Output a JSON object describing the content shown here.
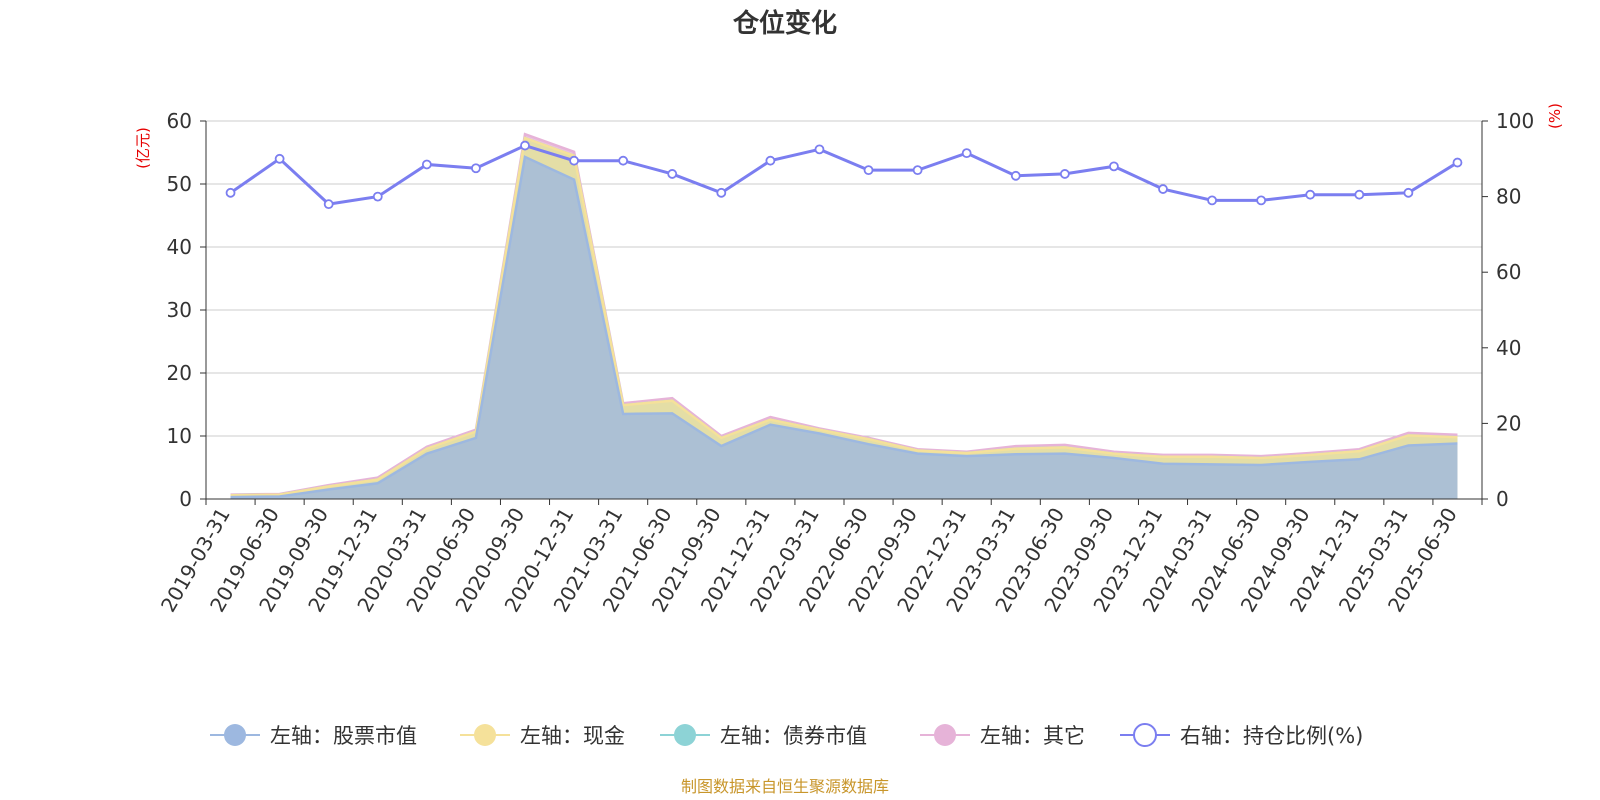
{
  "chart_data": {
    "type": "area",
    "title": "仓位变化",
    "left_axis_unit": "(亿元)",
    "right_axis_unit": "(%)",
    "left_axis": {
      "ylim": [
        0,
        60
      ],
      "ticks": [
        0,
        10,
        20,
        30,
        40,
        50,
        60
      ]
    },
    "right_axis": {
      "ylim": [
        0,
        100
      ],
      "ticks": [
        0,
        20,
        40,
        60,
        80,
        100
      ]
    },
    "grid": true,
    "legend_position": "bottom",
    "categories": [
      "2019-03-31",
      "2019-06-30",
      "2019-09-30",
      "2019-12-31",
      "2020-03-31",
      "2020-06-30",
      "2020-09-30",
      "2020-12-31",
      "2021-03-31",
      "2021-06-30",
      "2021-09-30",
      "2021-12-31",
      "2022-03-31",
      "2022-06-30",
      "2022-09-30",
      "2022-12-31",
      "2023-03-31",
      "2023-06-30",
      "2023-09-30",
      "2023-12-31",
      "2024-03-31",
      "2024-06-30",
      "2024-09-30",
      "2024-12-31",
      "2025-03-31",
      "2025-06-30"
    ],
    "series": [
      {
        "name": "左轴：股票市值",
        "axis": "left",
        "type": "area",
        "color": "#9db8e0",
        "values": [
          0.3,
          0.4,
          1.5,
          2.5,
          7.2,
          9.7,
          54.3,
          50.7,
          13.5,
          13.6,
          8.4,
          11.8,
          10.4,
          8.7,
          7.2,
          6.8,
          7.1,
          7.2,
          6.5,
          5.6,
          5.5,
          5.4,
          5.9,
          6.3,
          8.5,
          8.8
        ]
      },
      {
        "name": "左轴：现金",
        "axis": "left",
        "type": "area",
        "color": "#f5e19a",
        "values": [
          0.3,
          0.3,
          0.5,
          0.6,
          0.8,
          1.0,
          3.0,
          3.8,
          1.4,
          2.0,
          1.3,
          0.8,
          0.6,
          0.8,
          0.5,
          0.5,
          0.9,
          1.0,
          0.7,
          1.1,
          1.2,
          1.1,
          1.1,
          1.3,
          1.6,
          1.0
        ]
      },
      {
        "name": "左轴：债券市值",
        "axis": "left",
        "type": "area",
        "color": "#8dd3d6",
        "values": [
          0,
          0,
          0,
          0,
          0,
          0,
          0,
          0,
          0,
          0,
          0,
          0,
          0,
          0,
          0,
          0,
          0,
          0,
          0,
          0,
          0,
          0,
          0,
          0,
          0,
          0
        ]
      },
      {
        "name": "左轴：其它",
        "axis": "left",
        "type": "area",
        "color": "#e6b3d8",
        "values": [
          0.1,
          0.1,
          0.2,
          0.3,
          0.3,
          0.3,
          0.6,
          0.6,
          0.3,
          0.4,
          0.3,
          0.4,
          0.2,
          0.2,
          0.2,
          0.2,
          0.4,
          0.4,
          0.3,
          0.3,
          0.3,
          0.3,
          0.3,
          0.3,
          0.4,
          0.4
        ]
      },
      {
        "name": "右轴：持仓比例(%)",
        "axis": "right",
        "type": "line",
        "color": "#7b7ef0",
        "values": [
          81,
          90,
          78,
          80,
          88.5,
          87.5,
          93.5,
          89.5,
          89.5,
          86,
          81,
          89.5,
          92.5,
          87,
          87,
          91.5,
          85.5,
          86,
          88,
          82,
          79,
          79,
          80.5,
          80.5,
          81,
          89
        ]
      }
    ],
    "source_note": "制图数据来自恒生聚源数据库"
  }
}
